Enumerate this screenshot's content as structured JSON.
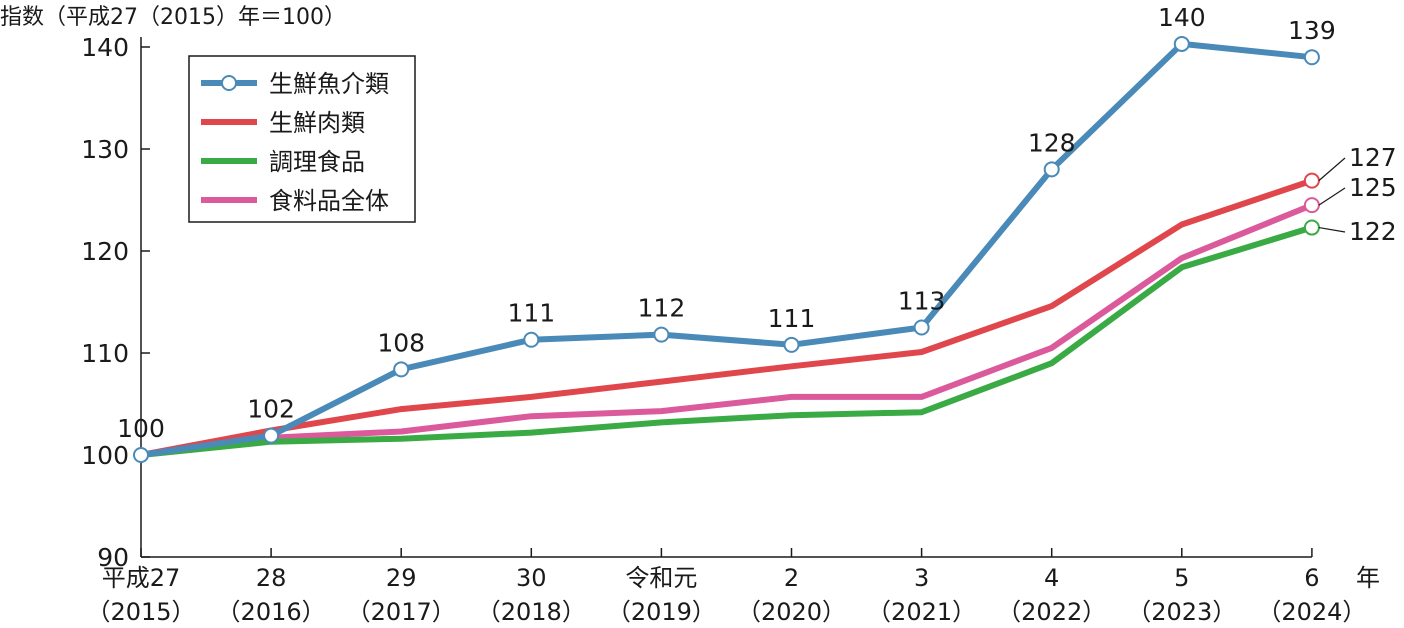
{
  "chart_data": {
    "type": "line",
    "ylabel": "指数（平成27（2015）年＝100）",
    "xlabel": "年",
    "ylim": [
      90,
      140
    ],
    "yticks": [
      90,
      100,
      110,
      120,
      130,
      140
    ],
    "categories": [
      {
        "top": "平成27",
        "bottom": "（2015）"
      },
      {
        "top": "28",
        "bottom": "（2016）"
      },
      {
        "top": "29",
        "bottom": "（2017）"
      },
      {
        "top": "30",
        "bottom": "（2018）"
      },
      {
        "top": "令和元",
        "bottom": "（2019）"
      },
      {
        "top": "2",
        "bottom": "（2020）"
      },
      {
        "top": "3",
        "bottom": "（2021）"
      },
      {
        "top": "4",
        "bottom": "（2022）"
      },
      {
        "top": "5",
        "bottom": "（2023）"
      },
      {
        "top": "6",
        "bottom": "（2024）"
      }
    ],
    "series": [
      {
        "name": "生鮮魚介類",
        "color": "#4a8ab8",
        "markers": "all",
        "values": [
          100,
          101.9,
          108.4,
          111.3,
          111.8,
          110.8,
          112.5,
          128.0,
          140.3,
          139.0
        ],
        "labels": [
          "100",
          "102",
          "108",
          "111",
          "112",
          "111",
          "113",
          "128",
          "140",
          "139"
        ]
      },
      {
        "name": "生鮮肉類",
        "color": "#e0474c",
        "markers": "last",
        "values": [
          100,
          102.4,
          104.5,
          105.7,
          107.2,
          108.7,
          110.1,
          114.6,
          122.6,
          126.9
        ],
        "end_label": "127"
      },
      {
        "name": "調理食品",
        "color": "#3aaa44",
        "markers": "last",
        "values": [
          100,
          101.3,
          101.6,
          102.2,
          103.2,
          103.9,
          104.2,
          109.0,
          118.4,
          122.3
        ],
        "end_label": "122"
      },
      {
        "name": "食料品全体",
        "color": "#db5a9b",
        "markers": "last",
        "values": [
          100,
          101.7,
          102.3,
          103.8,
          104.3,
          105.7,
          105.7,
          110.5,
          119.3,
          124.5
        ],
        "end_label": "125"
      }
    ]
  }
}
